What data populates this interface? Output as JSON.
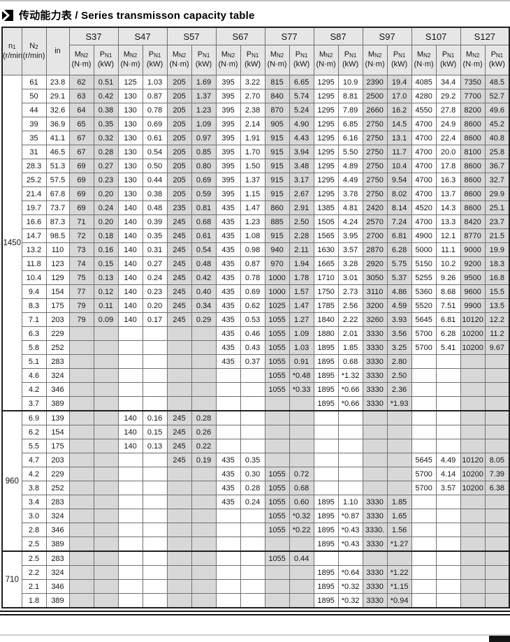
{
  "page": {
    "title_zh": "传动能力表",
    "title_sep": " / ",
    "title_en": "Series transmisson capacity table"
  },
  "colors": {
    "column_shade": "#d8d8d8",
    "header_bg": "#e6e6e6",
    "frame": "#1f1f1f",
    "grid": "#707070"
  },
  "table": {
    "corner": {
      "n1_sym": "n",
      "n1_sub": "1",
      "n1_unit": "(r/min)",
      "n2_sym": "N",
      "n2_sub": "2",
      "n2_unit": "(r/min)",
      "ratio_label": "in"
    },
    "series": [
      "S37",
      "S47",
      "S57",
      "S67",
      "S77",
      "S87",
      "S97",
      "S107",
      "S127"
    ],
    "sub": {
      "m_sym": "M",
      "m_sub": "N2",
      "m_unit": "(N·m)",
      "p_sym": "P",
      "p_sub": "N1",
      "p_unit": "(kW)"
    },
    "groups": [
      {
        "n1": "1450",
        "rows": [
          {
            "n2": "61",
            "i": "23.8",
            "v": [
              "62",
              "0.51",
              "125",
              "1.03",
              "205",
              "1.69",
              "395",
              "3.22",
              "815",
              "6.65",
              "1295",
              "10.9",
              "2390",
              "19.4",
              "4085",
              "34.4",
              "7350",
              "48.5"
            ]
          },
          {
            "n2": "50",
            "i": "29.1",
            "v": [
              "63",
              "0.42",
              "130",
              "0.87",
              "205",
              "1.37",
              "395",
              "2.70",
              "840",
              "5.74",
              "1295",
              "8.81",
              "2500",
              "17.0",
              "4280",
              "29.2",
              "7700",
              "52.7"
            ]
          },
          {
            "n2": "44",
            "i": "32.6",
            "v": [
              "64",
              "0.38",
              "130",
              "0.78",
              "205",
              "1.23",
              "395",
              "2.38",
              "870",
              "5.24",
              "1295",
              "7.89",
              "2660",
              "16.2",
              "4550",
              "27.8",
              "8200",
              "49.6"
            ]
          },
          {
            "n2": "39",
            "i": "36.9",
            "v": [
              "65",
              "0.35",
              "130",
              "0.69",
              "205",
              "1.09",
              "395",
              "2.14",
              "905",
              "4.90",
              "1295",
              "6.85",
              "2750",
              "14.5",
              "4700",
              "24.9",
              "8600",
              "45.2"
            ]
          },
          {
            "n2": "35",
            "i": "41.1",
            "v": [
              "67",
              "0.32",
              "130",
              "0.61",
              "205",
              "0.97",
              "395",
              "1.91",
              "915",
              "4.43",
              "1295",
              "6.16",
              "2750",
              "13.1",
              "4700",
              "22.4",
              "8600",
              "40.8"
            ]
          },
          {
            "n2": "31",
            "i": "46.5",
            "v": [
              "67",
              "0.28",
              "130",
              "0.54",
              "205",
              "0.85",
              "395",
              "1.70",
              "915",
              "3.94",
              "1295",
              "5.50",
              "2750",
              "11.7",
              "4700",
              "20.0",
              "8100",
              "25.8"
            ]
          },
          {
            "n2": "28.3",
            "i": "51.3",
            "v": [
              "69",
              "0.27",
              "130",
              "0.50",
              "205",
              "0.80",
              "395",
              "1.50",
              "915",
              "3.48",
              "1295",
              "4.89",
              "2750",
              "10.4",
              "4700",
              "17.8",
              "8600",
              "36.7"
            ]
          },
          {
            "n2": "25.2",
            "i": "57.5",
            "v": [
              "69",
              "0.23",
              "130",
              "0.44",
              "205",
              "0.69",
              "395",
              "1.37",
              "915",
              "3.17",
              "1295",
              "4.49",
              "2750",
              "9.54",
              "4700",
              "16.3",
              "8600",
              "32.7"
            ]
          },
          {
            "n2": "21.4",
            "i": "67.8",
            "v": [
              "69",
              "0.20",
              "130",
              "0.38",
              "205",
              "0.59",
              "395",
              "1.15",
              "915",
              "2.67",
              "1295",
              "3.78",
              "2750",
              "8.02",
              "4700",
              "13.7",
              "8600",
              "29.9"
            ]
          },
          {
            "n2": "19.7",
            "i": "73.7",
            "v": [
              "69",
              "0.24",
              "140",
              "0.48",
              "235",
              "0.81",
              "435",
              "1.47",
              "860",
              "2.91",
              "1385",
              "4.81",
              "2420",
              "8.14",
              "4520",
              "14.3",
              "8600",
              "25.1"
            ]
          },
          {
            "n2": "16.6",
            "i": "87.3",
            "v": [
              "71",
              "0.20",
              "140",
              "0.39",
              "245",
              "0.68",
              "435",
              "1.23",
              "885",
              "2.50",
              "1505",
              "4.24",
              "2570",
              "7.24",
              "4700",
              "13.3",
              "8420",
              "23.7"
            ]
          },
          {
            "n2": "14.7",
            "i": "98.5",
            "v": [
              "72",
              "0.18",
              "140",
              "0.35",
              "245",
              "0.61",
              "435",
              "1.08",
              "915",
              "2.28",
              "1565",
              "3.95",
              "2700",
              "6.81",
              "4900",
              "12.1",
              "8770",
              "21.5"
            ]
          },
          {
            "n2": "13.2",
            "i": "110",
            "v": [
              "73",
              "0.16",
              "140",
              "0.31",
              "245",
              "0.54",
              "435",
              "0.98",
              "940",
              "2.11",
              "1630",
              "3.57",
              "2870",
              "6.28",
              "5000",
              "11.1",
              "9000",
              "19.9"
            ]
          },
          {
            "n2": "11.8",
            "i": "123",
            "v": [
              "74",
              "0.15",
              "140",
              "0.27",
              "245",
              "0.48",
              "435",
              "0.87",
              "970",
              "1.94",
              "1665",
              "3.28",
              "2920",
              "5.75",
              "5150",
              "10.2",
              "9200",
              "18.3"
            ]
          },
          {
            "n2": "10.4",
            "i": "129",
            "v": [
              "75",
              "0.13",
              "140",
              "0.24",
              "245",
              "0.42",
              "435",
              "0.78",
              "1000",
              "1.78",
              "1710",
              "3.01",
              "3050",
              "5.37",
              "5255",
              "9.26",
              "9500",
              "16.8"
            ]
          },
          {
            "n2": "9.4",
            "i": "154",
            "v": [
              "77",
              "0.12",
              "140",
              "0.23",
              "245",
              "0.40",
              "435",
              "0.69",
              "1000",
              "1.57",
              "1750",
              "2.73",
              "3110",
              "4.86",
              "5360",
              "8.68",
              "9600",
              "15.5"
            ]
          },
          {
            "n2": "8.3",
            "i": "175",
            "v": [
              "79",
              "0.11",
              "140",
              "0.20",
              "245",
              "0.34",
              "435",
              "0.62",
              "1025",
              "1.47",
              "1785",
              "2.56",
              "3200",
              "4.59",
              "5520",
              "7.51",
              "9900",
              "13.5"
            ]
          },
          {
            "n2": "7.1",
            "i": "203",
            "v": [
              "79",
              "0.09",
              "140",
              "0.17",
              "245",
              "0.29",
              "435",
              "0.53",
              "1055",
              "1.27",
              "1840",
              "2.22",
              "3260",
              "3.93",
              "5645",
              "6.81",
              "10120",
              "12.2"
            ]
          },
          {
            "n2": "6.3",
            "i": "229",
            "v": [
              "",
              "",
              "",
              "",
              "",
              "",
              "435",
              "0.46",
              "1055",
              "1.09",
              "1880",
              "2.01",
              "3330",
              "3.56",
              "5700",
              "6.28",
              "10200",
              "11.2"
            ]
          },
          {
            "n2": "5.8",
            "i": "252",
            "v": [
              "",
              "",
              "",
              "",
              "",
              "",
              "435",
              "0.43",
              "1055",
              "1.03",
              "1895",
              "1.85",
              "3330",
              "3.25",
              "5700",
              "5.41",
              "10200",
              "9.67"
            ]
          },
          {
            "n2": "5.1",
            "i": "283",
            "v": [
              "",
              "",
              "",
              "",
              "",
              "",
              "435",
              "0.37",
              "1055",
              "0.91",
              "1895",
              "0.68",
              "3330",
              "2.80",
              "",
              "",
              "",
              ""
            ]
          },
          {
            "n2": "4.6",
            "i": "324",
            "v": [
              "",
              "",
              "",
              "",
              "",
              "",
              "",
              "",
              "1055",
              "*0.48",
              "1895",
              "*1.32",
              "3330",
              "2.50",
              "",
              "",
              "",
              ""
            ]
          },
          {
            "n2": "4.2",
            "i": "346",
            "v": [
              "",
              "",
              "",
              "",
              "",
              "",
              "",
              "",
              "1055",
              "*0.33",
              "1895",
              "*0.66",
              "3330",
              "2.36",
              "",
              "",
              "",
              ""
            ]
          },
          {
            "n2": "3.7",
            "i": "389",
            "v": [
              "",
              "",
              "",
              "",
              "",
              "",
              "",
              "",
              "",
              "",
              "1895",
              "*0.66",
              "3330",
              "*1.93",
              "",
              "",
              "",
              ""
            ]
          }
        ]
      },
      {
        "n1": "960",
        "rows": [
          {
            "n2": "6.9",
            "i": "139",
            "v": [
              "",
              "",
              "140",
              "0.16",
              "245",
              "0.28",
              "",
              "",
              "",
              "",
              "",
              "",
              "",
              "",
              "",
              "",
              "",
              ""
            ]
          },
          {
            "n2": "6.2",
            "i": "154",
            "v": [
              "",
              "",
              "140",
              "0.15",
              "245",
              "0.26",
              "",
              "",
              "",
              "",
              "",
              "",
              "",
              "",
              "",
              "",
              "",
              ""
            ]
          },
          {
            "n2": "5.5",
            "i": "175",
            "v": [
              "",
              "",
              "140",
              "0.13",
              "245",
              "0.22",
              "",
              "",
              "",
              "",
              "",
              "",
              "",
              "",
              "",
              "",
              "",
              ""
            ]
          },
          {
            "n2": "4.7",
            "i": "203",
            "v": [
              "",
              "",
              "",
              "",
              "245",
              "0.19",
              "435",
              "0.35",
              "",
              "",
              "",
              "",
              "",
              "",
              "5645",
              "4.49",
              "10120",
              "8.05"
            ]
          },
          {
            "n2": "4.2",
            "i": "229",
            "v": [
              "",
              "",
              "",
              "",
              "",
              "",
              "435",
              "0.30",
              "1055",
              "0.72",
              "",
              "",
              "",
              "",
              "5700",
              "4.14",
              "10200",
              "7.39"
            ]
          },
          {
            "n2": "3.8",
            "i": "252",
            "v": [
              "",
              "",
              "",
              "",
              "",
              "",
              "435",
              "0.28",
              "1055",
              "0.68",
              "",
              "",
              "",
              "",
              "5700",
              "3.57",
              "10200",
              "6.38"
            ]
          },
          {
            "n2": "3.4",
            "i": "283",
            "v": [
              "",
              "",
              "",
              "",
              "",
              "",
              "435",
              "0.24",
              "1055",
              "0.60",
              "1895",
              "1.10",
              "3330",
              "1.85",
              "",
              "",
              "",
              ""
            ]
          },
          {
            "n2": "3.0",
            "i": "324",
            "v": [
              "",
              "",
              "",
              "",
              "",
              "",
              "",
              "",
              "1055",
              "*0.32",
              "1895",
              "*0.87",
              "3330",
              "1.65",
              "",
              "",
              "",
              ""
            ]
          },
          {
            "n2": "2.8",
            "i": "346",
            "v": [
              "",
              "",
              "",
              "",
              "",
              "",
              "",
              "",
              "1055",
              "*0.22",
              "1895",
              "*0.43",
              "3330.",
              "1.56",
              "",
              "",
              "",
              ""
            ]
          },
          {
            "n2": "2.5",
            "i": "389",
            "v": [
              "",
              "",
              "",
              "",
              "",
              "",
              "",
              "",
              "",
              "",
              "1895",
              "*0.43",
              "3330",
              "*1.27",
              "",
              "",
              "",
              ""
            ]
          }
        ]
      },
      {
        "n1": "710",
        "rows": [
          {
            "n2": "2.5",
            "i": "283",
            "v": [
              "",
              "",
              "",
              "",
              "",
              "",
              "",
              "",
              "1055",
              "0.44",
              "",
              "",
              "",
              "",
              "",
              "",
              "",
              ""
            ]
          },
          {
            "n2": "2.2",
            "i": "324",
            "v": [
              "",
              "",
              "",
              "",
              "",
              "",
              "",
              "",
              "",
              "",
              "1895",
              "*0.64",
              "3330",
              "*1.22",
              "",
              "",
              "",
              ""
            ]
          },
          {
            "n2": "2.1",
            "i": "346",
            "v": [
              "",
              "",
              "",
              "",
              "",
              "",
              "",
              "",
              "",
              "",
              "1895",
              "*0.32",
              "3330",
              "*1.15",
              "",
              "",
              "",
              ""
            ]
          },
          {
            "n2": "1.8",
            "i": "389",
            "v": [
              "",
              "",
              "",
              "",
              "",
              "",
              "",
              "",
              "",
              "",
              "1895",
              "*0.32",
              "3330",
              "*0.94",
              "",
              "",
              "",
              ""
            ]
          }
        ]
      }
    ]
  }
}
